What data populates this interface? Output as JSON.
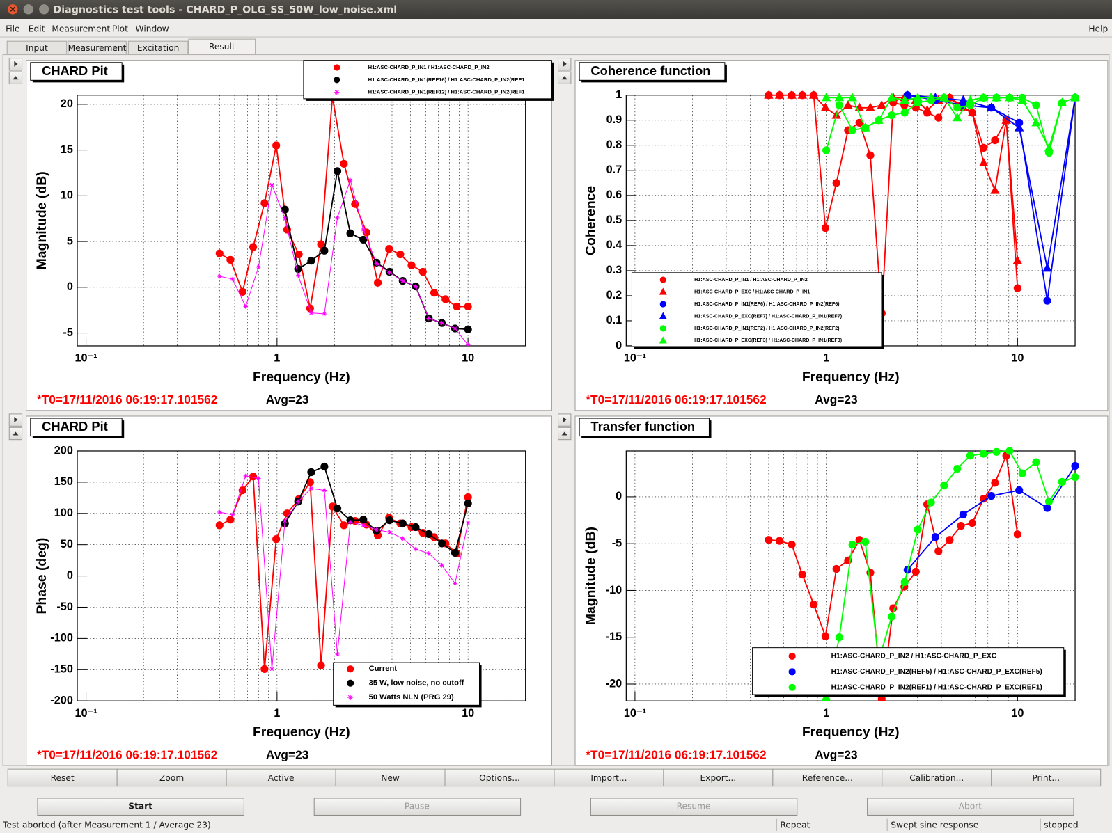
{
  "window": {
    "title": "Diagnostics test tools - CHARD_P_OLG_SS_50W_low_noise.xml"
  },
  "menu": [
    "File",
    "Edit",
    "Measurement",
    "Plot",
    "Window"
  ],
  "help": "Help",
  "tabs": [
    "Input",
    "Measurement",
    "Excitation",
    "Result"
  ],
  "chart_data": [
    {
      "type": "line",
      "title": "CHARD Pit",
      "xlabel": "Frequency (Hz)",
      "ylabel": "Magnitude (dB)",
      "xlog": true,
      "grid": true,
      "legend": "top-right",
      "xlim": [
        0.09,
        20
      ],
      "xticks": [
        {
          "value": 0.1,
          "label": "10⁻¹"
        },
        1,
        10
      ],
      "ylim": [
        -6.4,
        21
      ],
      "yticks": [
        -5,
        0,
        5,
        10,
        15,
        20
      ],
      "series": [
        {
          "name": "H1:ASC-CHARD_P_IN1 / H1:ASC-CHARD_P_IN2",
          "color": "#ff0000",
          "marker": "circle",
          "x": [
            0.5,
            0.57,
            0.66,
            0.75,
            0.86,
            0.99,
            1.13,
            1.3,
            1.49,
            1.7,
            1.95,
            2.24,
            2.56,
            2.94,
            3.37,
            3.86,
            4.42,
            5.06,
            5.8,
            6.65,
            7.62,
            8.73,
            10
          ],
          "values": [
            3.7,
            3.0,
            -0.5,
            4.4,
            9.2,
            15.5,
            6.3,
            3.6,
            -2.3,
            4.7,
            20.8,
            13.5,
            9.1,
            6.0,
            0.5,
            4.2,
            3.6,
            2.4,
            1.7,
            -0.6,
            -1.3,
            -2.1,
            -2.1
          ]
        },
        {
          "name": "H1:ASC-CHARD_P_IN1(REF16) / H1:ASC-CHARD_P_IN2(REF1",
          "color": "#000000",
          "marker": "circle",
          "x": [
            1.1,
            1.29,
            1.51,
            1.77,
            2.07,
            2.42,
            2.83,
            3.32,
            3.88,
            4.55,
            5.32,
            6.23,
            7.3,
            8.55,
            10
          ],
          "values": [
            8.5,
            2.0,
            2.9,
            4.0,
            12.7,
            5.9,
            5.2,
            2.7,
            1.7,
            0.7,
            0.1,
            -3.4,
            -3.9,
            -4.5,
            -4.6
          ]
        },
        {
          "name": "H1:ASC-CHARD_P_IN1(REF12) / H1:ASC-CHARD_P_IN2(REF1",
          "color": "#ff00ff",
          "marker": "star",
          "x": [
            0.5,
            0.585,
            0.685,
            0.8,
            0.94,
            1.1,
            1.29,
            1.51,
            1.77,
            2.07,
            2.42,
            2.83,
            3.32,
            3.88,
            4.55,
            5.32,
            6.23,
            7.3,
            8.55,
            10
          ],
          "values": [
            1.2,
            0.9,
            -2.1,
            2.2,
            11.2,
            7.5,
            1.3,
            -2.8,
            -2.9,
            7.6,
            11.7,
            6.3,
            2.6,
            1.6,
            0.7,
            0.1,
            -3.4,
            -3.9,
            -4.5,
            -6.3
          ]
        }
      ],
      "annotations": [
        "*T0=17/11/2016 06:19:17.101562",
        "Avg=23"
      ]
    },
    {
      "type": "line",
      "title": "Coherence function",
      "xlabel": "Frequency (Hz)",
      "ylabel": "Coherence",
      "xlog": true,
      "grid": true,
      "legend": "bottom-left",
      "xlim": [
        0.09,
        20
      ],
      "xticks": [
        {
          "value": 0.1,
          "label": "10⁻¹"
        },
        1,
        10
      ],
      "ylim": [
        0,
        1
      ],
      "yticks": [
        0,
        0.1,
        0.2,
        0.3,
        0.4,
        0.5,
        0.6,
        0.7,
        0.8,
        0.9,
        1
      ],
      "series": [
        {
          "name": "H1:ASC-CHARD_P_IN1 / H1:ASC-CHARD_P_IN2",
          "color": "#ff0000",
          "marker": "circle",
          "x": [
            0.5,
            0.57,
            0.66,
            0.75,
            0.86,
            0.99,
            1.13,
            1.3,
            1.49,
            1.7,
            1.95,
            2.24,
            2.56,
            2.94,
            3.37,
            3.86,
            4.42,
            5.06,
            5.8,
            6.65,
            7.62,
            8.73,
            10
          ],
          "values": [
            1.0,
            1.0,
            1.0,
            1.0,
            1.0,
            0.47,
            0.65,
            0.86,
            0.89,
            0.76,
            0.13,
            0.97,
            0.96,
            0.95,
            0.93,
            0.91,
            0.99,
            0.96,
            0.93,
            0.79,
            0.82,
            0.9,
            0.23
          ]
        },
        {
          "name": "H1:ASC-CHARD_P_EXC / H1:ASC-CHARD_P_IN1",
          "color": "#ff0000",
          "marker": "triangle",
          "x": [
            0.5,
            0.57,
            0.66,
            0.75,
            0.86,
            0.99,
            1.13,
            1.3,
            1.49,
            1.7,
            1.95,
            2.24,
            2.56,
            2.94,
            3.37,
            3.86,
            4.42,
            5.06,
            5.8,
            6.65,
            7.62,
            8.73,
            10
          ],
          "values": [
            1.0,
            1.0,
            1.0,
            1.0,
            1.0,
            0.95,
            0.92,
            0.96,
            0.95,
            0.95,
            0.96,
            0.99,
            0.99,
            0.98,
            0.94,
            0.98,
            0.99,
            0.95,
            0.93,
            0.73,
            0.62,
            0.9,
            0.34
          ]
        },
        {
          "name": "H1:ASC-CHARD_P_IN1(REF6) / H1:ASC-CHARD_P_IN2(REF6)",
          "color": "#0000ff",
          "marker": "circle",
          "x": [
            2.66,
            3.72,
            5.2,
            7.29,
            10.2,
            14.3,
            20
          ],
          "values": [
            1.0,
            0.98,
            0.96,
            0.95,
            0.89,
            0.18,
            0.99
          ]
        },
        {
          "name": "H1:ASC-CHARD_P_EXC(REF7) / H1:ASC-CHARD_P_IN1(REF7)",
          "color": "#0000ff",
          "marker": "triangle",
          "x": [
            2.66,
            3.72,
            5.2,
            7.29,
            10.2,
            14.3,
            20
          ],
          "values": [
            1.0,
            0.99,
            0.98,
            0.95,
            0.87,
            0.31,
            0.99
          ]
        },
        {
          "name": "H1:ASC-CHARD_P_IN1(REF2) / H1:ASC-CHARD_P_IN2(REF2)",
          "color": "#00ff00",
          "marker": "circle",
          "x": [
            1,
            1.17,
            1.37,
            1.6,
            1.88,
            2.2,
            2.57,
            3.01,
            3.53,
            4.13,
            4.84,
            5.66,
            6.63,
            7.76,
            9.09,
            10.6,
            12.5,
            14.6,
            17.1,
            20
          ],
          "values": [
            0.78,
            0.96,
            0.86,
            0.87,
            0.9,
            0.92,
            0.93,
            0.97,
            0.98,
            0.99,
            0.95,
            0.96,
            0.99,
            0.99,
            0.99,
            0.99,
            0.96,
            0.77,
            0.97,
            0.99
          ]
        },
        {
          "name": "H1:ASC-CHARD_P_EXC(REF3) / H1:ASC-CHARD_P_IN1(REF3)",
          "color": "#00ff00",
          "marker": "triangle",
          "x": [
            1,
            1.17,
            1.37,
            1.6,
            1.88,
            2.2,
            2.57,
            3.01,
            3.53,
            4.13,
            4.84,
            5.66,
            6.63,
            7.76,
            9.09,
            10.6,
            12.5,
            14.6,
            17.1,
            20
          ],
          "values": [
            0.99,
            0.99,
            0.99,
            0.87,
            0.9,
            0.99,
            0.98,
            0.99,
            0.99,
            0.99,
            0.91,
            0.98,
            0.99,
            0.99,
            0.99,
            0.98,
            0.89,
            0.79,
            0.97,
            0.99
          ]
        }
      ],
      "annotations": [
        "*T0=17/11/2016 06:19:17.101562",
        "Avg=23"
      ]
    },
    {
      "type": "line",
      "title": "CHARD Pit",
      "xlabel": "Frequency (Hz)",
      "ylabel": "Phase (deg)",
      "xlog": true,
      "grid": true,
      "legend": "bottom-right",
      "xlim": [
        0.09,
        20
      ],
      "xticks": [
        {
          "value": 0.1,
          "label": "10⁻¹"
        },
        1,
        10
      ],
      "ylim": [
        -200,
        200
      ],
      "yticks": [
        -200,
        -150,
        -100,
        -50,
        0,
        50,
        100,
        150,
        200
      ],
      "series": [
        {
          "name": "Current",
          "color": "#ff0000",
          "marker": "circle",
          "x": [
            0.5,
            0.57,
            0.66,
            0.75,
            0.86,
            0.99,
            1.13,
            1.3,
            1.49,
            1.7,
            1.95,
            2.24,
            2.56,
            2.94,
            3.37,
            3.86,
            4.42,
            5.06,
            5.8,
            6.65,
            7.62,
            8.73,
            10
          ],
          "values": [
            81,
            90,
            137,
            159,
            -149,
            59,
            100,
            123,
            150,
            -143,
            111,
            81,
            88,
            82,
            65,
            93,
            84,
            78,
            69,
            62,
            52,
            36,
            126
          ]
        },
        {
          "name": "35 W, low noise, no cutoff",
          "color": "#000000",
          "marker": "circle",
          "x": [
            1.1,
            1.29,
            1.51,
            1.77,
            2.07,
            2.42,
            2.83,
            3.32,
            3.88,
            4.55,
            5.32,
            6.23,
            7.3,
            8.55,
            10
          ],
          "values": [
            84,
            119,
            166,
            175,
            108,
            89,
            90,
            72,
            89,
            84,
            78,
            67,
            52,
            37,
            116
          ]
        },
        {
          "name": "50 Watts NLN (PRG 29)",
          "color": "#ff00ff",
          "marker": "star",
          "x": [
            0.5,
            0.585,
            0.685,
            0.8,
            0.94,
            1.1,
            1.29,
            1.51,
            1.77,
            2.07,
            2.42,
            2.83,
            3.32,
            3.88,
            4.55,
            5.32,
            6.23,
            7.3,
            8.55,
            10
          ],
          "values": [
            102,
            98,
            160,
            156,
            -149,
            88,
            119,
            140,
            137,
            -125,
            86,
            81,
            74,
            70,
            60,
            43,
            36,
            17,
            -12,
            85
          ]
        }
      ],
      "annotations": [
        "*T0=17/11/2016 06:19:17.101562",
        "Avg=23"
      ]
    },
    {
      "type": "line",
      "title": "Transfer function",
      "xlabel": "Frequency (Hz)",
      "ylabel": "Magnitude (dB)",
      "xlog": true,
      "grid": true,
      "legend": "bottom-right",
      "xlim": [
        0.09,
        20
      ],
      "xticks": [
        {
          "value": 0.1,
          "label": "10⁻¹"
        },
        1,
        10
      ],
      "ylim": [
        -21.8,
        4.9
      ],
      "yticks": [
        -20,
        -15,
        -10,
        -5,
        0
      ],
      "series": [
        {
          "name": "H1:ASC-CHARD_P_IN2 / H1:ASC-CHARD_P_EXC",
          "color": "#ff0000",
          "marker": "circle",
          "x": [
            0.5,
            0.57,
            0.66,
            0.75,
            0.86,
            0.99,
            1.13,
            1.3,
            1.49,
            1.7,
            1.95,
            2.24,
            2.56,
            2.94,
            3.37,
            3.86,
            4.42,
            5.06,
            5.8,
            6.65,
            7.62,
            8.73,
            10
          ],
          "values": [
            -4.6,
            -4.7,
            -5.1,
            -8.3,
            -11.5,
            -14.9,
            -7.7,
            -6.8,
            -4.6,
            -8.1,
            -21.6,
            -11.9,
            -9.6,
            -8.0,
            -0.8,
            -5.8,
            -4.6,
            -3.1,
            -2.8,
            -0.2,
            1.5,
            4.4,
            -4.0
          ]
        },
        {
          "name": "H1:ASC-CHARD_P_IN2(REF5) / H1:ASC-CHARD_P_EXC(REF5)",
          "color": "#0000ff",
          "marker": "circle",
          "x": [
            2.66,
            3.72,
            5.2,
            7.29,
            10.2,
            14.3,
            20
          ],
          "values": [
            -7.8,
            -4.3,
            -1.9,
            0.1,
            0.7,
            -1.2,
            3.3
          ]
        },
        {
          "name": "H1:ASC-CHARD_P_IN2(REF1) / H1:ASC-CHARD_P_EXC(REF1)",
          "color": "#00ff00",
          "marker": "circle",
          "x": [
            1,
            1.17,
            1.37,
            1.6,
            1.88,
            2.2,
            2.57,
            3.01,
            3.53,
            4.13,
            4.84,
            5.66,
            6.63,
            7.76,
            9.09,
            10.6,
            12.5,
            14.6,
            17.1,
            20
          ],
          "values": [
            -21.7,
            -15.0,
            -5.1,
            -4.8,
            -17.5,
            -12.8,
            -9.1,
            -3.5,
            -0.6,
            1.2,
            3.0,
            4.4,
            4.6,
            4.8,
            4.9,
            2.5,
            3.7,
            -0.5,
            1.6,
            2.1
          ]
        }
      ],
      "annotations": [
        "*T0=17/11/2016 06:19:17.101562",
        "Avg=23"
      ]
    }
  ],
  "buttons": [
    "Reset",
    "Zoom",
    "Active",
    "New",
    "Options...",
    "Import...",
    "Export...",
    "Reference...",
    "Calibration...",
    "Print..."
  ],
  "controls": [
    "Start",
    "Pause",
    "Resume",
    "Abort"
  ],
  "status": [
    "Test aborted (after Measurement 1 / Average 23)",
    "Repeat",
    "Swept sine response",
    "stopped"
  ]
}
